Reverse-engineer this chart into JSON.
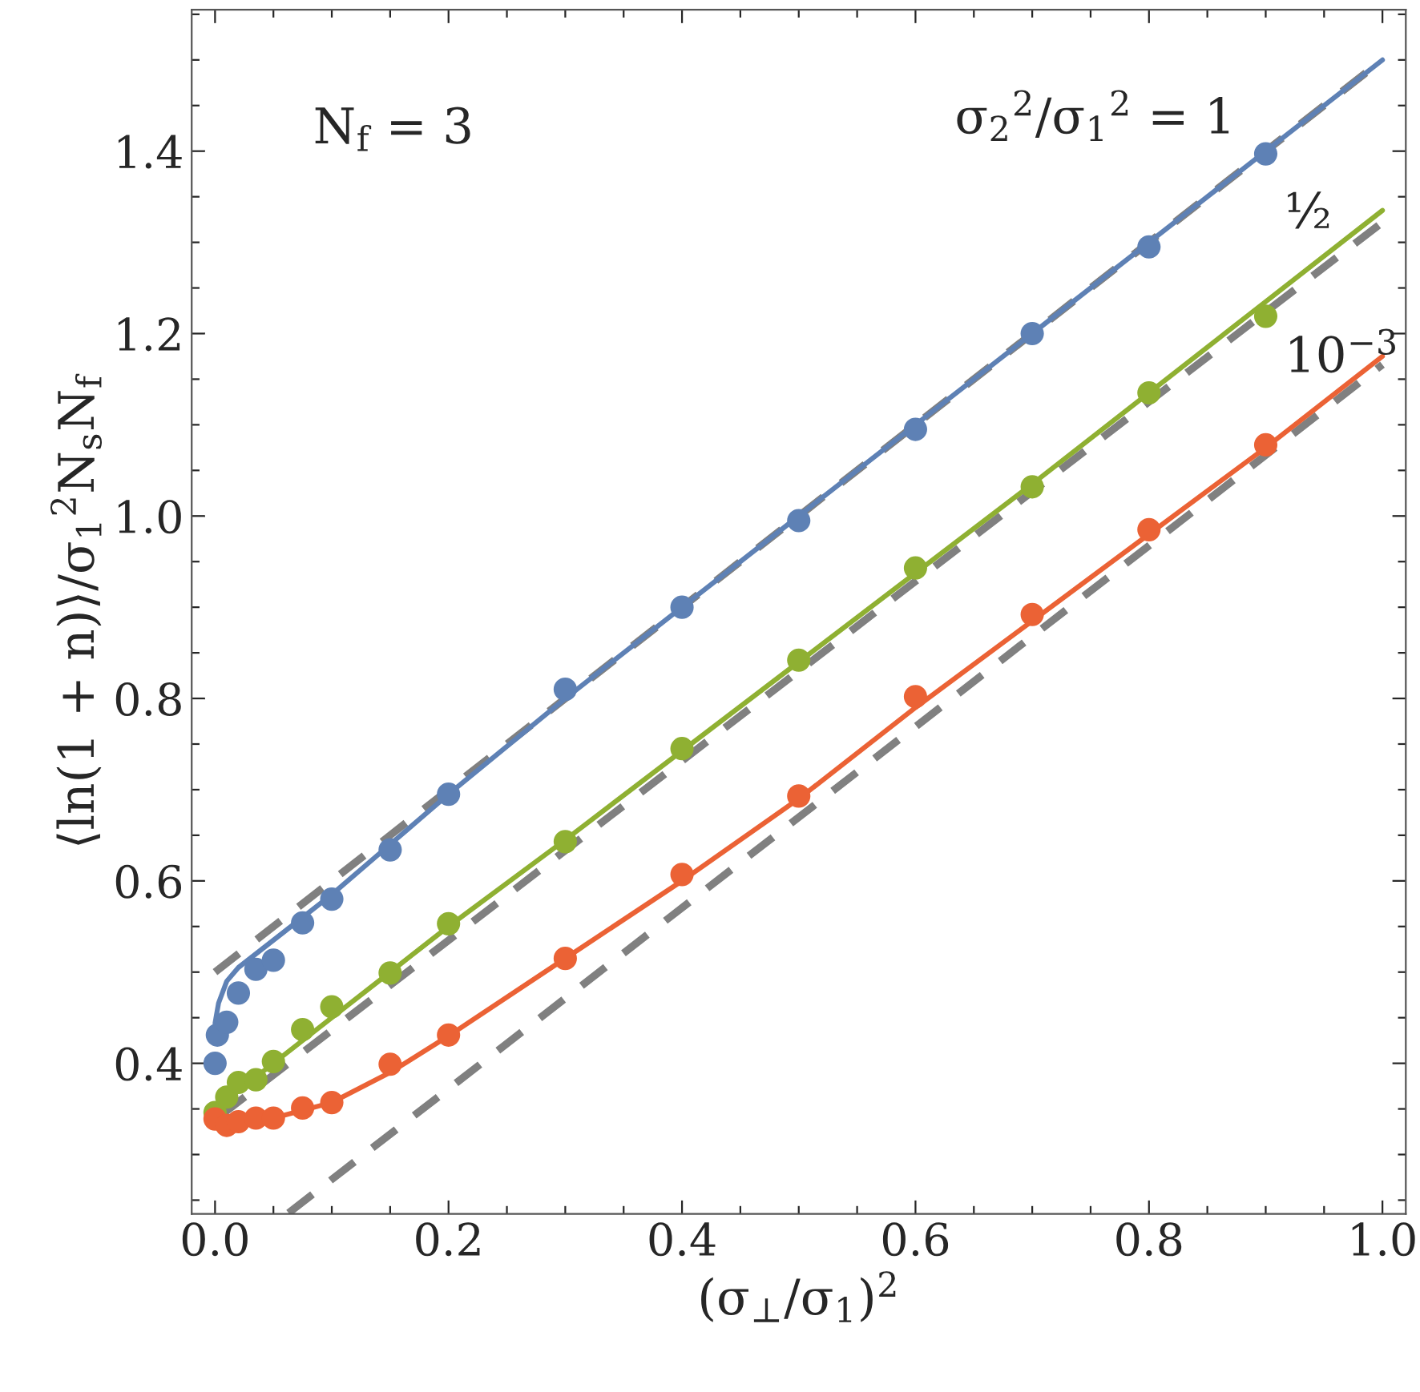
{
  "chart_data": {
    "type": "scatter",
    "xlabel": "(σ$_{⊥}$/σ$_{1}$)$^{2}$",
    "ylabel": "⟨ln(1 + n)⟩/σ$_{1}$$^{2}$N$_{s}$N$_{f}$",
    "xlim": [
      -0.02,
      1.02
    ],
    "ylim": [
      0.235,
      1.555
    ],
    "xticks": [
      {
        "value": 0,
        "label": "0.0"
      },
      {
        "value": 0.05,
        "label": null
      },
      {
        "value": 0.1,
        "label": null
      },
      {
        "value": 0.15,
        "label": null
      },
      0.2,
      {
        "value": 0.25,
        "label": null
      },
      {
        "value": 0.3,
        "label": null
      },
      {
        "value": 0.35,
        "label": null
      },
      0.4,
      {
        "value": 0.45,
        "label": null
      },
      {
        "value": 0.5,
        "label": null
      },
      {
        "value": 0.55,
        "label": null
      },
      0.6,
      {
        "value": 0.65,
        "label": null
      },
      {
        "value": 0.7,
        "label": null
      },
      {
        "value": 0.75,
        "label": null
      },
      0.8,
      {
        "value": 0.85,
        "label": null
      },
      {
        "value": 0.9,
        "label": null
      },
      {
        "value": 0.95,
        "label": null
      },
      {
        "value": 1,
        "label": "1.0"
      }
    ],
    "yticks": [
      {
        "value": 0.25,
        "label": null
      },
      {
        "value": 0.3,
        "label": null
      },
      {
        "value": 0.35,
        "label": null
      },
      0.4,
      {
        "value": 0.45,
        "label": null
      },
      {
        "value": 0.5,
        "label": null
      },
      {
        "value": 0.55,
        "label": null
      },
      0.6,
      {
        "value": 0.65,
        "label": null
      },
      {
        "value": 0.7,
        "label": null
      },
      {
        "value": 0.75,
        "label": null
      },
      0.8,
      {
        "value": 0.85,
        "label": null
      },
      {
        "value": 0.9,
        "label": null
      },
      {
        "value": 0.95,
        "label": null
      },
      {
        "value": 1,
        "label": "1.0"
      },
      {
        "value": 1.05,
        "label": null
      },
      {
        "value": 1.1,
        "label": null
      },
      {
        "value": 1.15,
        "label": null
      },
      1.2,
      {
        "value": 1.25,
        "label": null
      },
      {
        "value": 1.3,
        "label": null
      },
      {
        "value": 1.35,
        "label": null
      },
      1.4,
      {
        "value": 1.45,
        "label": null
      },
      {
        "value": 1.5,
        "label": null
      },
      {
        "value": 1.55,
        "label": null
      }
    ],
    "grid": false,
    "legend": false,
    "annotations": [
      "N$_{f}$ = 3",
      "σ$_{2}$$^{2}$/σ$_{1}$$^{2}$ = 1",
      "½",
      "10$^{−3}$"
    ],
    "series": [
      {
        "type": "line",
        "line_style": "dashed",
        "marker": "none",
        "color": "#808080",
        "x": [
          0,
          1
        ],
        "values": [
          0.5,
          1.5
        ]
      },
      {
        "type": "line",
        "line_style": "dashed",
        "marker": "none",
        "color": "#808080",
        "x": [
          0.005,
          1
        ],
        "values": [
          0.343,
          1.322
        ]
      },
      {
        "type": "line",
        "line_style": "dashed",
        "marker": "none",
        "color": "#808080",
        "x": [
          0.063,
          1
        ],
        "values": [
          0.236,
          1.166
        ]
      },
      {
        "type": "line",
        "line_style": "solid",
        "marker": "none",
        "color": "#5e81b5",
        "x": [
          0,
          0.003,
          0.01,
          0.02,
          0.04,
          0.06,
          0.1,
          0.15,
          0.2,
          0.3,
          0.5,
          0.7,
          1
        ],
        "values": [
          0.444,
          0.466,
          0.49,
          0.505,
          0.525,
          0.545,
          0.585,
          0.64,
          0.695,
          0.8,
          1.0,
          1.2,
          1.5
        ]
      },
      {
        "type": "line",
        "line_style": "solid",
        "marker": "none",
        "color": "#8fb032",
        "x": [
          0,
          0.01,
          0.02,
          0.05,
          0.1,
          0.15,
          0.2,
          0.3,
          0.5,
          0.7,
          0.9,
          1
        ],
        "values": [
          0.335,
          0.36,
          0.37,
          0.4,
          0.45,
          0.5,
          0.55,
          0.645,
          0.84,
          1.035,
          1.235,
          1.335
        ]
      },
      {
        "type": "line",
        "line_style": "solid",
        "marker": "none",
        "color": "#eb6235",
        "x": [
          0,
          0.01,
          0.03,
          0.05,
          0.1,
          0.15,
          0.2,
          0.3,
          0.4,
          0.5,
          0.6,
          0.7,
          0.8,
          0.9,
          1
        ],
        "values": [
          0.34,
          0.332,
          0.334,
          0.34,
          0.357,
          0.39,
          0.43,
          0.515,
          0.6,
          0.69,
          0.79,
          0.885,
          0.98,
          1.075,
          1.175
        ]
      },
      {
        "marker": "circle",
        "color": "#5e81b5",
        "x": [
          0,
          0.002,
          0.01,
          0.02,
          0.035,
          0.05,
          0.075,
          0.1,
          0.15,
          0.2,
          0.3,
          0.4,
          0.5,
          0.6,
          0.7,
          0.8,
          0.9
        ],
        "values": [
          0.4,
          0.431,
          0.445,
          0.477,
          0.503,
          0.513,
          0.554,
          0.58,
          0.634,
          0.695,
          0.81,
          0.9,
          0.995,
          1.095,
          1.2,
          1.295,
          1.397
        ]
      },
      {
        "marker": "circle",
        "color": "#8fb032",
        "x": [
          0,
          0.01,
          0.02,
          0.035,
          0.05,
          0.075,
          0.1,
          0.15,
          0.2,
          0.3,
          0.4,
          0.5,
          0.6,
          0.7,
          0.8,
          0.9
        ],
        "values": [
          0.346,
          0.363,
          0.379,
          0.382,
          0.402,
          0.437,
          0.462,
          0.499,
          0.553,
          0.643,
          0.745,
          0.842,
          0.943,
          1.032,
          1.135,
          1.219
        ]
      },
      {
        "marker": "circle",
        "color": "#eb6235",
        "x": [
          0,
          0.01,
          0.02,
          0.035,
          0.05,
          0.075,
          0.1,
          0.15,
          0.2,
          0.3,
          0.4,
          0.5,
          0.6,
          0.7,
          0.8,
          0.9
        ],
        "values": [
          0.339,
          0.332,
          0.336,
          0.34,
          0.34,
          0.351,
          0.357,
          0.399,
          0.431,
          0.515,
          0.607,
          0.693,
          0.802,
          0.892,
          0.985,
          1.078
        ]
      }
    ]
  }
}
